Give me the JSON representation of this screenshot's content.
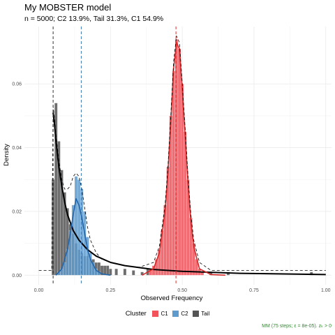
{
  "title": "My MOBSTER model",
  "subtitle": "n = 5000; C2 13.9%, Tail 31.3%, C1 54.9%",
  "caption": "MM (75 steps; ε = 8e-05). zₖ > 0",
  "legend": {
    "title": "Cluster",
    "items": [
      {
        "label": "C1",
        "color": "#f0545a"
      },
      {
        "label": "C2",
        "color": "#5e9acb"
      },
      {
        "label": "Tail",
        "color": "#555555"
      }
    ]
  },
  "chart_data": {
    "type": "bar",
    "xlabel": "Observed Frequency",
    "ylabel": "Density",
    "xlim": [
      -0.05,
      1.02
    ],
    "ylim": [
      -0.003,
      0.078
    ],
    "x_ticks": [
      "0.00",
      "0.25",
      "0.50",
      "0.75",
      "1.00"
    ],
    "x_tick_values": [
      0,
      0.25,
      0.5,
      0.75,
      1
    ],
    "y_ticks": [
      "0.00",
      "0.02",
      "0.04",
      "0.06"
    ],
    "y_tick_values": [
      0,
      0.02,
      0.04,
      0.06
    ],
    "bin_width": 0.01,
    "grid": true,
    "series": [
      {
        "name": "Tail",
        "color": "#555555",
        "x": [
          0.05,
          0.06,
          0.07,
          0.08,
          0.09,
          0.1,
          0.11,
          0.12,
          0.13,
          0.14,
          0.15,
          0.16,
          0.17,
          0.18,
          0.19,
          0.2,
          0.21,
          0.22,
          0.23,
          0.24,
          0.25,
          0.27,
          0.3,
          0.33,
          0.36,
          0.38,
          0.6,
          0.66,
          0.95
        ],
        "values": [
          0.03,
          0.054,
          0.042,
          0.033,
          0.026,
          0.021,
          0.016,
          0.013,
          0.01,
          0.008,
          0.007,
          0.006,
          0.006,
          0.005,
          0.005,
          0.004,
          0.004,
          0.003,
          0.003,
          0.003,
          0.002,
          0.002,
          0.002,
          0.0015,
          0.001,
          0.002,
          0.001,
          0.001,
          0.001
        ]
      },
      {
        "name": "C2",
        "color": "#5e9acb",
        "x": [
          0.07,
          0.08,
          0.09,
          0.1,
          0.11,
          0.12,
          0.13,
          0.14,
          0.15,
          0.16,
          0.17,
          0.18,
          0.19,
          0.2,
          0.21
        ],
        "values": [
          0.001,
          0.002,
          0.004,
          0.008,
          0.014,
          0.022,
          0.031,
          0.03,
          0.027,
          0.02,
          0.012,
          0.007,
          0.004,
          0.002,
          0.001
        ]
      },
      {
        "name": "C1",
        "color": "#f0545a",
        "x": [
          0.39,
          0.4,
          0.41,
          0.42,
          0.43,
          0.44,
          0.45,
          0.46,
          0.47,
          0.48,
          0.49,
          0.5,
          0.51,
          0.52,
          0.53,
          0.54,
          0.55,
          0.56,
          0.57
        ],
        "values": [
          0.002,
          0.003,
          0.005,
          0.008,
          0.014,
          0.022,
          0.034,
          0.05,
          0.064,
          0.074,
          0.071,
          0.06,
          0.045,
          0.03,
          0.018,
          0.01,
          0.005,
          0.002,
          0.001
        ]
      }
    ],
    "density_lines": [
      {
        "name": "Tail",
        "color": "#000000",
        "x": [
          0.05,
          0.055,
          0.06,
          0.07,
          0.08,
          0.09,
          0.1,
          0.12,
          0.14,
          0.17,
          0.2,
          0.25,
          0.3,
          0.4,
          0.5,
          0.7,
          1.0
        ],
        "values": [
          0.051,
          0.047,
          0.042,
          0.034,
          0.028,
          0.023,
          0.019,
          0.014,
          0.011,
          0.008,
          0.006,
          0.004,
          0.003,
          0.0018,
          0.0012,
          0.0006,
          0.0002
        ]
      },
      {
        "name": "C2",
        "color": "#2166ac",
        "x": [
          0.06,
          0.08,
          0.1,
          0.11,
          0.12,
          0.13,
          0.14,
          0.15,
          0.16,
          0.17,
          0.18,
          0.2,
          0.22,
          0.25
        ],
        "values": [
          0.0,
          0.002,
          0.008,
          0.013,
          0.019,
          0.024,
          0.022,
          0.018,
          0.013,
          0.008,
          0.005,
          0.0015,
          0.0004,
          0.0
        ]
      },
      {
        "name": "C1",
        "color": "#d62828",
        "x": [
          0.36,
          0.4,
          0.42,
          0.44,
          0.45,
          0.46,
          0.47,
          0.48,
          0.49,
          0.5,
          0.51,
          0.52,
          0.53,
          0.54,
          0.56,
          0.6,
          0.65
        ],
        "values": [
          0.0,
          0.002,
          0.007,
          0.02,
          0.032,
          0.048,
          0.065,
          0.073,
          0.071,
          0.058,
          0.044,
          0.029,
          0.017,
          0.009,
          0.002,
          0.0002,
          0.0
        ]
      }
    ],
    "mixture_line": {
      "x": [
        0.0,
        0.045,
        0.05,
        0.055,
        0.06,
        0.07,
        0.08,
        0.09,
        0.1,
        0.11,
        0.12,
        0.13,
        0.14,
        0.15,
        0.16,
        0.17,
        0.18,
        0.2,
        0.22,
        0.25,
        0.3,
        0.35,
        0.4,
        0.42,
        0.44,
        0.45,
        0.46,
        0.47,
        0.48,
        0.49,
        0.5,
        0.51,
        0.52,
        0.53,
        0.54,
        0.56,
        0.6,
        0.7,
        1.0
      ],
      "values": [
        0.0015,
        0.0015,
        0.053,
        0.049,
        0.044,
        0.036,
        0.03,
        0.027,
        0.027,
        0.028,
        0.031,
        0.032,
        0.031,
        0.027,
        0.021,
        0.015,
        0.011,
        0.007,
        0.005,
        0.004,
        0.003,
        0.0025,
        0.004,
        0.009,
        0.022,
        0.034,
        0.05,
        0.067,
        0.075,
        0.073,
        0.06,
        0.046,
        0.031,
        0.019,
        0.011,
        0.004,
        0.0015,
        0.0015,
        0.0015
      ]
    },
    "vlines": [
      {
        "name": "Tail",
        "x": 0.05,
        "color": "#333333"
      },
      {
        "name": "C2",
        "x": 0.148,
        "color": "#3a78b0"
      },
      {
        "name": "C1",
        "x": 0.478,
        "color": "#e03030"
      }
    ]
  }
}
